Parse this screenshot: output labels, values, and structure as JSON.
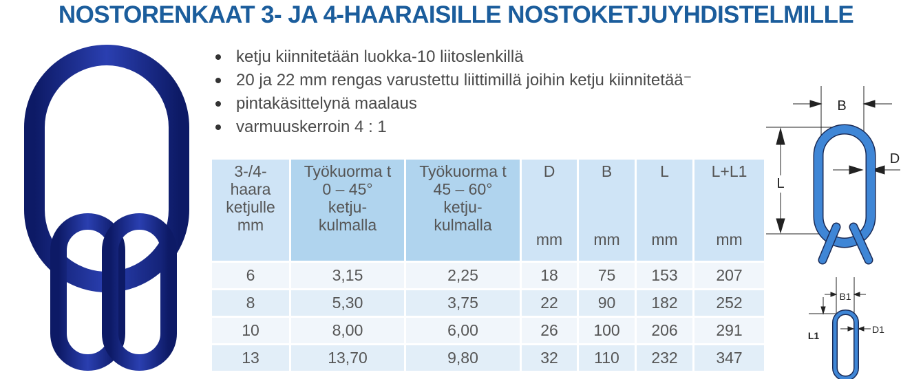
{
  "title": "NOSTORENKAAT 3- JA 4-HAARAISILLE NOSTOKETJUYHDISTELMILLE",
  "bullets": [
    "ketju kiinnitetään luokka-10 liitoslenkillä",
    "20 ja 22 mm rengas varustettu liittimillä joihin ketju kiinnitetää⁻",
    "pintakäsittelynä maalaus",
    "varmuuskerroin 4 : 1"
  ],
  "table": {
    "headers": [
      {
        "lines": [
          "3-/4-",
          "haara",
          "ketjulle",
          "mm"
        ]
      },
      {
        "lines": [
          "Työkuorma t",
          "0 – 45°",
          "ketju-",
          "kulmalla"
        ]
      },
      {
        "lines": [
          "Työkuorma t",
          "45 – 60°",
          "ketju-",
          "kulmalla"
        ]
      },
      {
        "label": "D",
        "unit": "mm"
      },
      {
        "label": "B",
        "unit": "mm"
      },
      {
        "label": "L",
        "unit": "mm"
      },
      {
        "label": "L+L1",
        "unit": "mm"
      }
    ],
    "rows": [
      [
        "6",
        "3,15",
        "2,25",
        "18",
        "75",
        "153",
        "207"
      ],
      [
        "8",
        "5,30",
        "3,75",
        "22",
        "90",
        "182",
        "252"
      ],
      [
        "10",
        "8,00",
        "6,00",
        "26",
        "100",
        "206",
        "291"
      ],
      [
        "13",
        "13,70",
        "9,80",
        "32",
        "110",
        "232",
        "347"
      ]
    ]
  },
  "diagram": {
    "labels": {
      "B": "B",
      "D": "D",
      "L": "L",
      "B1": "B1",
      "D1": "D1",
      "L1": "L1"
    },
    "color": "#3f86d6"
  },
  "product_image": {
    "icon": "master-link-ring-icon",
    "color": "#1e2e8c"
  }
}
